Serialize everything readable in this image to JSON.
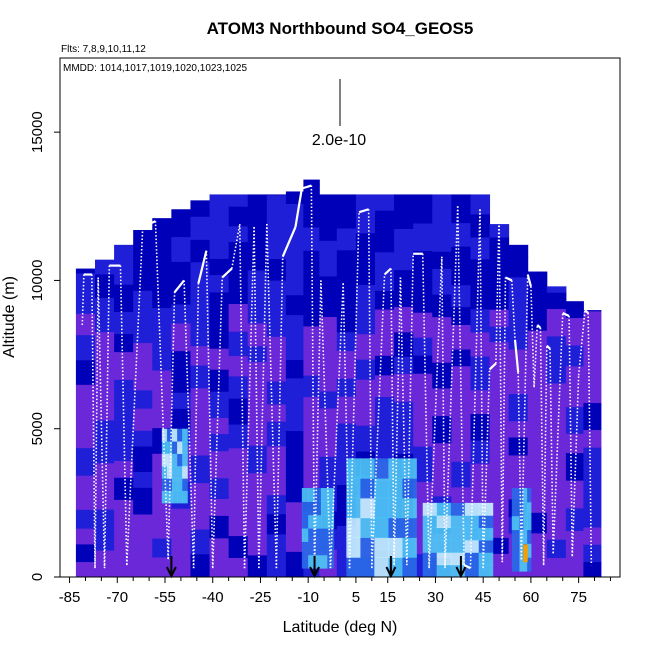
{
  "chart_data": {
    "type": "heatmap",
    "title": "ATOM3 Northbound SO4_GEOS5",
    "flights_label": "Flts: 7,8,9,10,11,12",
    "mmdd_label": "MMDD: 1014,1017,1019,1020,1023,1025",
    "xlabel": "Latitude (deg N)",
    "ylabel": "Altitude (m)",
    "xlim": [
      -88,
      88
    ],
    "ylim": [
      0,
      17500
    ],
    "xticks": [
      -85,
      -70,
      -55,
      -40,
      -25,
      -10,
      5,
      15,
      30,
      45,
      60,
      75
    ],
    "xtick_labels": [
      "-85",
      "-70",
      "-55",
      "-40",
      "-25",
      "-10",
      "5",
      "15",
      "30",
      "45",
      "60",
      "75"
    ],
    "yticks": [
      0,
      5000,
      10000,
      15000
    ],
    "ytick_labels": [
      "0",
      "5000",
      "10000",
      "15000"
    ],
    "scale_label": "2.0e-10",
    "colors": {
      "dark_blue": "#0000b8",
      "blue": "#1f1fd8",
      "violet": "#6a28d8",
      "cyan": "#4fc8f5",
      "pale_cyan": "#c8f4ff",
      "orange": "#f5a000",
      "white": "#ffffff"
    },
    "column_top_altitudes": [
      {
        "lat": -80,
        "top": 10400
      },
      {
        "lat": -74,
        "top": 10700
      },
      {
        "lat": -68,
        "top": 11200
      },
      {
        "lat": -62,
        "top": 11700
      },
      {
        "lat": -56,
        "top": 12100
      },
      {
        "lat": -50,
        "top": 12400
      },
      {
        "lat": -44,
        "top": 12700
      },
      {
        "lat": -38,
        "top": 12900
      },
      {
        "lat": -32,
        "top": 12900
      },
      {
        "lat": -26,
        "top": 12900
      },
      {
        "lat": -20,
        "top": 12900
      },
      {
        "lat": -14,
        "top": 13000
      },
      {
        "lat": -9,
        "top": 13400
      },
      {
        "lat": -4,
        "top": 12900
      },
      {
        "lat": 2,
        "top": 12900
      },
      {
        "lat": 8,
        "top": 12900
      },
      {
        "lat": 14,
        "top": 12900
      },
      {
        "lat": 20,
        "top": 12900
      },
      {
        "lat": 26,
        "top": 12900
      },
      {
        "lat": 32,
        "top": 12900
      },
      {
        "lat": 38,
        "top": 12900
      },
      {
        "lat": 44,
        "top": 12900
      },
      {
        "lat": 50,
        "top": 11900
      },
      {
        "lat": 56,
        "top": 11200
      },
      {
        "lat": 62,
        "top": 10300
      },
      {
        "lat": 68,
        "top": 9800
      },
      {
        "lat": 74,
        "top": 9300
      },
      {
        "lat": 79,
        "top": 9000
      }
    ],
    "enhanced_regions": [
      {
        "lat": [
          -56,
          -48
        ],
        "alt": [
          2500,
          5000
        ],
        "level": "high"
      },
      {
        "lat": [
          -12,
          -2
        ],
        "alt": [
          300,
          3000
        ],
        "level": "medium"
      },
      {
        "lat": [
          2,
          24
        ],
        "alt": [
          0,
          4000
        ],
        "level": "high"
      },
      {
        "lat": [
          26,
          48
        ],
        "alt": [
          0,
          2500
        ],
        "level": "high"
      },
      {
        "lat": [
          54,
          60
        ],
        "alt": [
          200,
          3000
        ],
        "level": "medium"
      }
    ],
    "flight_track": [
      [
        -81,
        8500
      ],
      [
        -80.5,
        10200
      ],
      [
        -78,
        10200
      ],
      [
        -77,
        300
      ],
      [
        -76,
        10100
      ],
      [
        -74,
        300
      ],
      [
        -72.5,
        10500
      ],
      [
        -69,
        10500
      ],
      [
        -67,
        400
      ],
      [
        -62,
        11800
      ],
      [
        -58,
        12000
      ],
      [
        -54,
        600
      ],
      [
        -52,
        9600
      ],
      [
        -49,
        10000
      ],
      [
        -46,
        300
      ],
      [
        -44.5,
        9900
      ],
      [
        -42,
        11000
      ],
      [
        -40,
        300
      ],
      [
        -37,
        10100
      ],
      [
        -34,
        10400
      ],
      [
        -31.5,
        11900
      ],
      [
        -30,
        300
      ],
      [
        -27,
        11800
      ],
      [
        -25.5,
        300
      ],
      [
        -23,
        11900
      ],
      [
        -20,
        300
      ],
      [
        -18,
        10800
      ],
      [
        -14,
        11800
      ],
      [
        -12,
        13100
      ],
      [
        -9,
        13200
      ],
      [
        -8,
        300
      ],
      [
        -6,
        10000
      ],
      [
        -3,
        300
      ],
      [
        1,
        9900
      ],
      [
        3,
        300
      ],
      [
        6,
        12300
      ],
      [
        9,
        12400
      ],
      [
        10,
        300
      ],
      [
        14,
        10200
      ],
      [
        16,
        10400
      ],
      [
        17,
        400
      ],
      [
        19,
        10100
      ],
      [
        21,
        400
      ],
      [
        23,
        10900
      ],
      [
        26,
        10900
      ],
      [
        28,
        300
      ],
      [
        32,
        10800
      ],
      [
        33,
        300
      ],
      [
        37,
        12500
      ],
      [
        39,
        400
      ],
      [
        41,
        300
      ],
      [
        44,
        12400
      ],
      [
        45,
        300
      ],
      [
        47,
        7000
      ],
      [
        49,
        7200
      ],
      [
        50,
        12200
      ],
      [
        51,
        500
      ],
      [
        52,
        10100
      ],
      [
        54,
        10000
      ],
      [
        55,
        8000
      ],
      [
        56,
        6900
      ],
      [
        57,
        600
      ],
      [
        59,
        10200
      ],
      [
        60,
        9800
      ],
      [
        61,
        6400
      ],
      [
        62,
        8500
      ],
      [
        63,
        8400
      ],
      [
        64,
        400
      ],
      [
        65,
        7800
      ],
      [
        66,
        7700
      ],
      [
        67,
        800
      ],
      [
        70,
        8900
      ],
      [
        72,
        8800
      ],
      [
        73,
        700
      ],
      [
        75,
        6800
      ],
      [
        77,
        9000
      ],
      [
        78,
        8900
      ],
      [
        79,
        400
      ]
    ],
    "markers_lat": [
      -53,
      -8,
      16,
      38
    ]
  }
}
